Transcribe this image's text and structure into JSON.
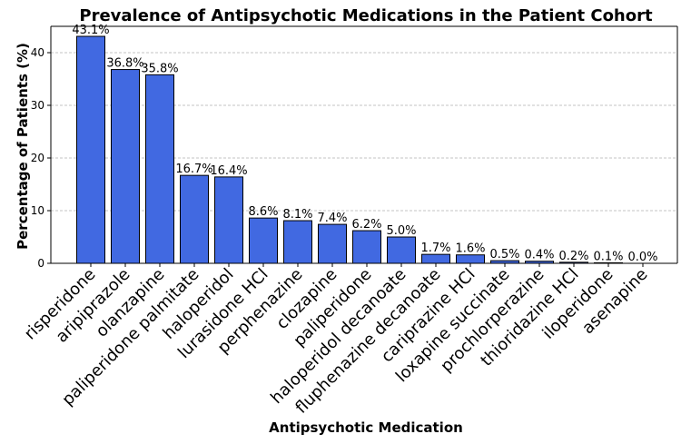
{
  "chart_data": {
    "type": "bar",
    "title": "Prevalence of Antipsychotic Medications in the Patient Cohort",
    "xlabel": "Antipsychotic Medication",
    "ylabel": "Percentage of Patients (%)",
    "ylim": [
      0,
      45
    ],
    "yticks": [
      0,
      10,
      20,
      30,
      40
    ],
    "grid": "y-dashed",
    "bar_color": "#4169e1",
    "categories": [
      "risperidone",
      "aripiprazole",
      "olanzapine",
      "paliperidone palmitate",
      "haloperidol",
      "lurasidone HCl",
      "perphenazine",
      "clozapine",
      "paliperidone",
      "haloperidol decanoate",
      "fluphenazine decanoate",
      "cariprazine HCl",
      "loxapine succinate",
      "prochlorperazine",
      "thioridazine HCl",
      "iloperidone",
      "asenapine"
    ],
    "values": [
      43.1,
      36.8,
      35.8,
      16.7,
      16.4,
      8.6,
      8.1,
      7.4,
      6.2,
      5.0,
      1.7,
      1.6,
      0.5,
      0.4,
      0.2,
      0.1,
      0.0
    ],
    "value_labels": [
      "43.1%",
      "36.8%",
      "35.8%",
      "16.7%",
      "16.4%",
      "8.6%",
      "8.1%",
      "7.4%",
      "6.2%",
      "5.0%",
      "1.7%",
      "1.6%",
      "0.5%",
      "0.4%",
      "0.2%",
      "0.1%",
      "0.0%"
    ]
  }
}
